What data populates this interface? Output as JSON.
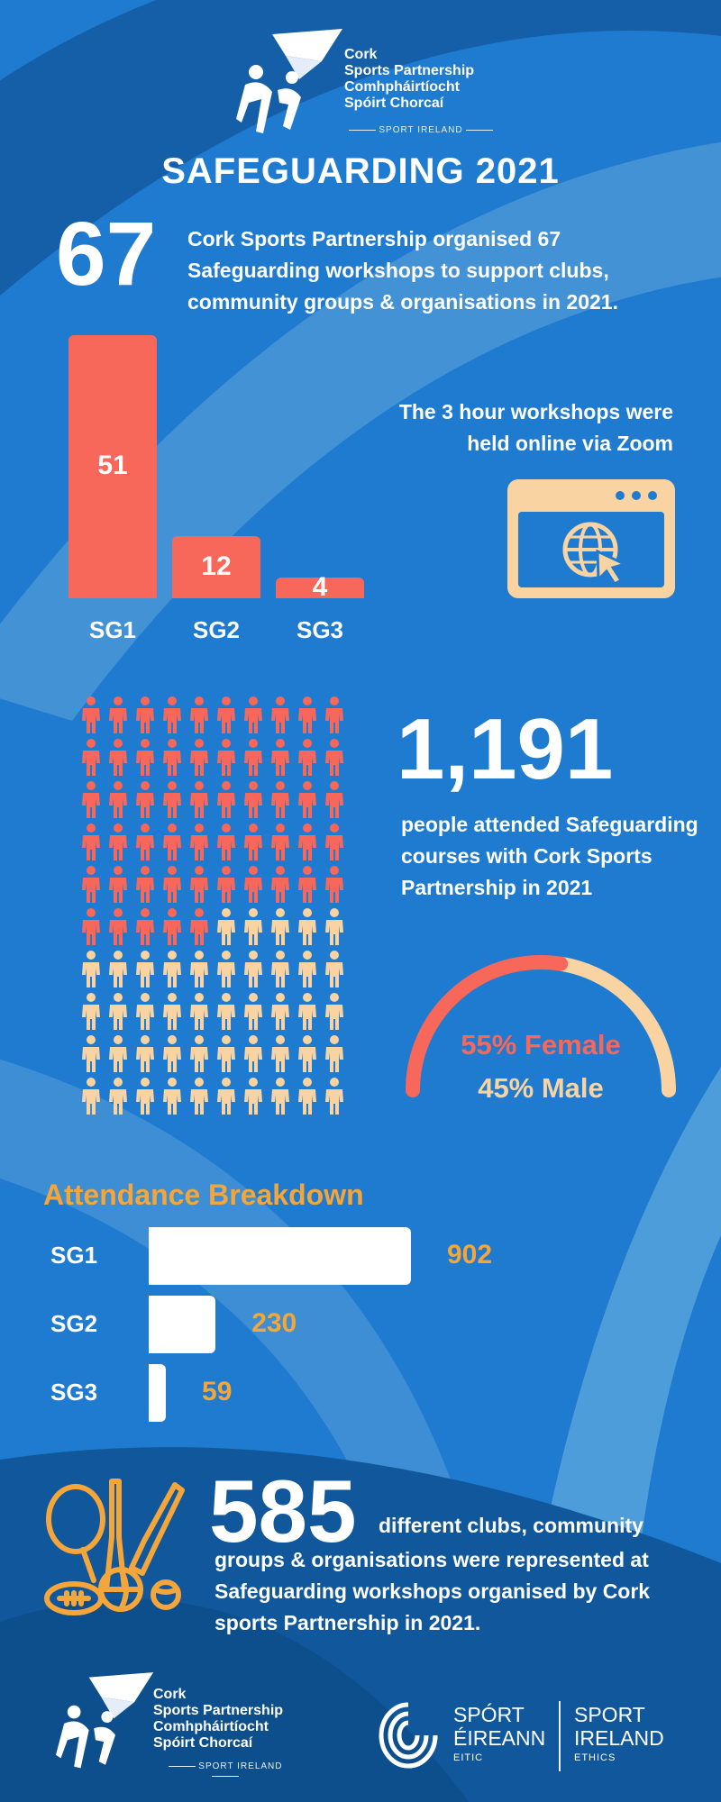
{
  "logo": {
    "line1": "Cork",
    "line2": "Sports Partnership",
    "line3": "Comhpháirtíocht",
    "line4": "Spóirt Chorcaí",
    "sub": "SPORT IRELAND"
  },
  "title": "SAFEGUARDING 2021",
  "workshops": {
    "number": "67",
    "text": "Cork Sports Partnership organised 67 Safeguarding workshops to support clubs, community groups & organisations in 2021.",
    "online_text": "The 3 hour workshops were held online via Zoom",
    "icon": "browser-globe-icon"
  },
  "chart_data": [
    {
      "type": "bar",
      "categories": [
        "SG1",
        "SG2",
        "SG3"
      ],
      "values": [
        51,
        12,
        4
      ]
    },
    {
      "type": "bar",
      "orientation": "horizontal",
      "title": "Attendance Breakdown",
      "categories": [
        "SG1",
        "SG2",
        "SG3"
      ],
      "values": [
        902,
        230,
        59
      ]
    }
  ],
  "attendance": {
    "number": "1,191",
    "text": "people attended Safeguarding courses with Cork Sports Partnership in 2021",
    "female_label": "55% Female",
    "male_label": "45% Male",
    "female_pct": 55,
    "male_pct": 45,
    "people_total": 100,
    "people_highlighted": 55,
    "icon": "person-icon"
  },
  "clubs": {
    "number": "585",
    "text_inline": "different clubs, community",
    "text_rest": "groups & organisations were represented at Safeguarding workshops organised by Cork sports Partnership in 2021.",
    "icon": "sports-equipment-icon"
  },
  "footer": {
    "sport_ireland_ga1": "SPÓRT",
    "sport_ireland_ga2": "ÉIREANN",
    "sport_ireland_ga3": "EITIC",
    "sport_ireland_en1": "SPORT",
    "sport_ireland_en2": "IRELAND",
    "sport_ireland_en3": "ETHICS"
  },
  "colors": {
    "background": "#1e7bd0",
    "coral": "#f7675a",
    "peach": "#f9d4a2",
    "orange": "#f4a63a",
    "dark_blue": "#0f5a9f",
    "light_blue": "#5aa6dd"
  }
}
